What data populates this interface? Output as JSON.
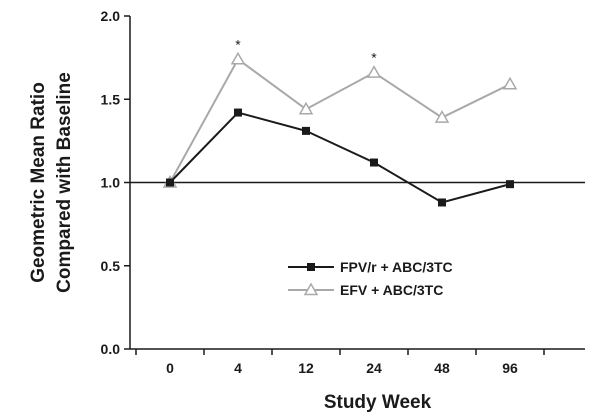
{
  "chart_data": {
    "type": "line",
    "title": "",
    "xlabel": "Study Week",
    "ylabel_lines": [
      "Geometric Mean Ratio",
      "Compared with Baseline"
    ],
    "categories": [
      "0",
      "4",
      "12",
      "24",
      "48",
      "96"
    ],
    "ylim": [
      0,
      2
    ],
    "y_ticks": [
      "0.0",
      "0.5",
      "1.0",
      "1.5",
      "2.0"
    ],
    "y_tick_values": [
      0,
      0.5,
      1.0,
      1.5,
      2.0
    ],
    "reference_line": 1.0,
    "grid": false,
    "legend_position": "center-bottom",
    "series": [
      {
        "name": "FPV/r + ABC/3TC",
        "values": [
          1.0,
          1.42,
          1.31,
          1.12,
          0.88,
          0.99
        ],
        "color": "#1a1a1a",
        "marker": "square-filled"
      },
      {
        "name": "EFV + ABC/3TC",
        "values": [
          1.0,
          1.74,
          1.44,
          1.66,
          1.39,
          1.59
        ],
        "color": "#a9a9a9",
        "marker": "triangle-open"
      }
    ],
    "annotations": [
      {
        "text": "*",
        "category_index": 1,
        "value": 1.74
      },
      {
        "text": "*",
        "category_index": 3,
        "value": 1.66
      }
    ]
  }
}
